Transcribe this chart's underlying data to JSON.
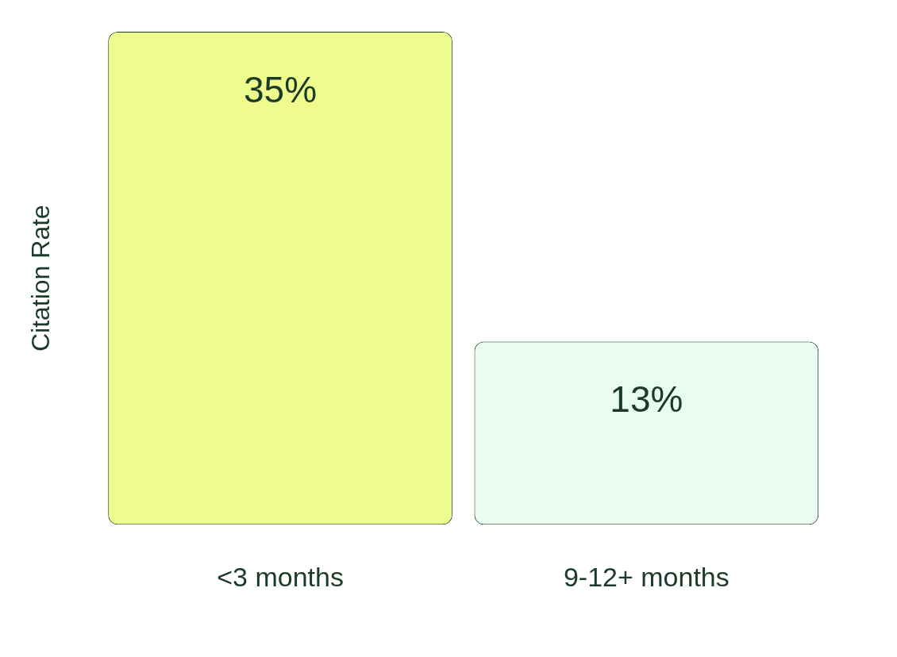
{
  "chart_data": {
    "type": "bar",
    "ylabel": "Citation Rate",
    "categories": [
      "<3 months",
      "9-12+ months"
    ],
    "values": [
      35,
      13
    ],
    "value_labels": [
      "35%",
      "13%"
    ],
    "colors": [
      "#edfc8c",
      "#e8fcef"
    ],
    "grid": false,
    "legend": false,
    "tick_labels": "x"
  }
}
